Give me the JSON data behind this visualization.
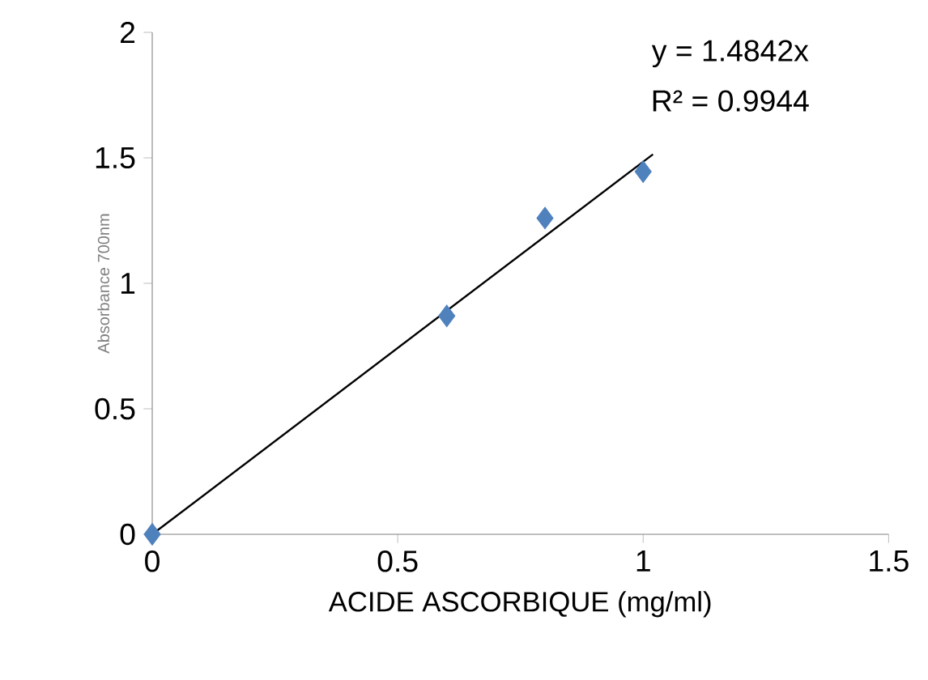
{
  "chart_data": {
    "type": "scatter",
    "xlabel": "ACIDE ASCORBIQUE (mg/ml)",
    "ylabel": "Absorbance 700nm",
    "xlim": [
      0,
      1.5
    ],
    "xticks": [
      0,
      0.5,
      1,
      1.5
    ],
    "ylim": [
      0,
      2
    ],
    "yticks": [
      0,
      0.5,
      1,
      1.5,
      2
    ],
    "annotations": [
      "y = 1.4842x",
      "R² = 0.9944"
    ],
    "series": [
      {
        "color": "#4f81bd",
        "marker": "diamond",
        "x": [
          0,
          0.6,
          0.8,
          1.0
        ],
        "values": [
          0,
          0.87,
          1.26,
          1.445
        ]
      },
      {
        "type": "line",
        "color": "#000000",
        "marker": "none",
        "line_style": "solid",
        "x": [
          0,
          1.02
        ],
        "values": [
          0,
          1.514
        ]
      }
    ]
  }
}
